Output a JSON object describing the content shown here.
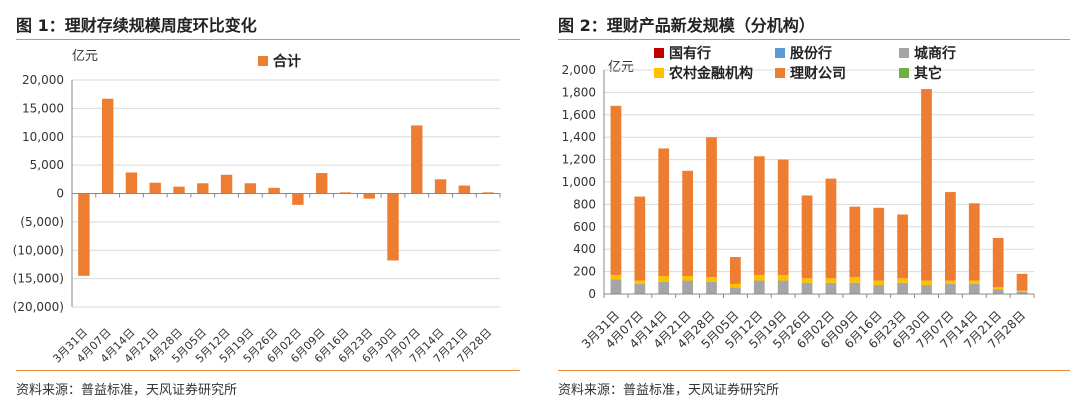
{
  "figures": [
    {
      "title": "图 1：理财存续规模周度环比变化",
      "source": "资料来源：普益标准，天风证券研究所"
    },
    {
      "title": "图 2：理财产品新发规模（分机构）",
      "source": "资料来源：普益标准，天风证券研究所"
    }
  ],
  "colors": {
    "accent": "#ec8a3c",
    "bar": "#ed7d31",
    "grid": "#d9d9d9",
    "axis": "#888888"
  },
  "chart_data": [
    {
      "type": "bar",
      "unit_label": "亿元",
      "categories": [
        "3月31日",
        "4月07日",
        "4月14日",
        "4月21日",
        "4月28日",
        "5月05日",
        "5月12日",
        "5月19日",
        "5月26日",
        "6月02日",
        "6月09日",
        "6月16日",
        "6月23日",
        "6月30日",
        "7月07日",
        "7月14日",
        "7月21日",
        "7月28日"
      ],
      "series": [
        {
          "name": "合计",
          "color": "#ed7d31",
          "values": [
            -14500,
            16700,
            3700,
            1900,
            1200,
            1800,
            3300,
            1800,
            1000,
            -2000,
            3600,
            200,
            -900,
            -11800,
            12000,
            2500,
            1400,
            200
          ]
        }
      ],
      "ylim": [
        -20000,
        20000
      ],
      "yticks": [
        20000,
        15000,
        10000,
        5000,
        0,
        -5000,
        -10000,
        -15000,
        -20000
      ],
      "ytick_labels": [
        "20,000",
        "15,000",
        "10,000",
        "5,000",
        "0",
        "(5,000)",
        "(10,000)",
        "(15,000)",
        "(20,000)"
      ],
      "grid": true,
      "legend_position": "top"
    },
    {
      "type": "bar",
      "stacked": true,
      "unit_label": "亿元",
      "categories": [
        "3月31日",
        "4月07日",
        "4月14日",
        "4月21日",
        "4月28日",
        "5月05日",
        "5月12日",
        "5月19日",
        "5月26日",
        "6月02日",
        "6月09日",
        "6月16日",
        "6月23日",
        "6月30日",
        "7月07日",
        "7月14日",
        "7月21日",
        "7月28日"
      ],
      "series": [
        {
          "name": "国有行",
          "color": "#c00000",
          "values": [
            0,
            0,
            0,
            0,
            0,
            0,
            0,
            0,
            0,
            0,
            0,
            0,
            0,
            0,
            0,
            0,
            0,
            0
          ]
        },
        {
          "name": "股份行",
          "color": "#5b9bd5",
          "values": [
            0,
            0,
            0,
            0,
            0,
            0,
            0,
            0,
            0,
            0,
            0,
            0,
            0,
            0,
            0,
            0,
            0,
            0
          ]
        },
        {
          "name": "城商行",
          "color": "#a5a5a5",
          "values": [
            130,
            90,
            110,
            120,
            110,
            60,
            120,
            120,
            100,
            100,
            100,
            80,
            100,
            80,
            90,
            90,
            40,
            20
          ]
        },
        {
          "name": "农村金融机构",
          "color": "#ffc000",
          "values": [
            40,
            30,
            50,
            40,
            40,
            30,
            50,
            50,
            40,
            40,
            50,
            40,
            40,
            40,
            30,
            30,
            20,
            10
          ]
        },
        {
          "name": "理财公司",
          "color": "#ed7d31",
          "values": [
            1510,
            750,
            1140,
            940,
            1250,
            240,
            1060,
            1030,
            740,
            890,
            630,
            650,
            570,
            1710,
            790,
            690,
            440,
            150
          ]
        },
        {
          "name": "其它",
          "color": "#70ad47",
          "values": [
            0,
            0,
            0,
            0,
            0,
            0,
            0,
            0,
            0,
            0,
            0,
            0,
            0,
            0,
            0,
            0,
            0,
            0
          ]
        }
      ],
      "ylim": [
        0,
        2000
      ],
      "yticks": [
        0,
        200,
        400,
        600,
        800,
        1000,
        1200,
        1400,
        1600,
        1800,
        2000
      ],
      "ytick_labels": [
        "0",
        "200",
        "400",
        "600",
        "800",
        "1,000",
        "1,200",
        "1,400",
        "1,600",
        "1,800",
        "2,000"
      ],
      "grid": true,
      "legend_position": "top"
    }
  ]
}
